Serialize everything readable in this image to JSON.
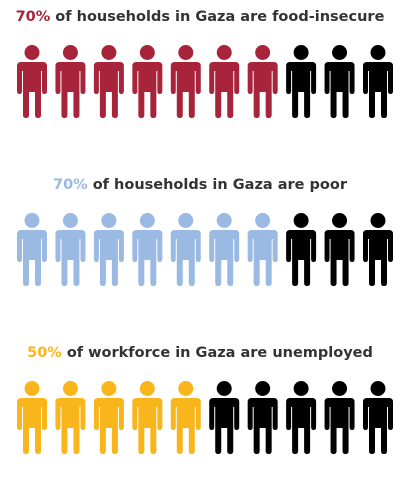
{
  "chart_data": [
    {
      "type": "pictograph",
      "title": "of households in Gaza are food-insecure",
      "values": [
        70
      ],
      "value_labels": [
        "70%"
      ],
      "color": "#a8243b",
      "rest_color": "#000000",
      "icons": 10,
      "xlim": [
        0,
        100
      ]
    },
    {
      "type": "pictograph",
      "title": "of households in Gaza are poor",
      "values": [
        70
      ],
      "value_labels": [
        "70%"
      ],
      "color": "#9ab9e3",
      "rest_color": "#000000",
      "icons": 10,
      "xlim": [
        0,
        100
      ]
    },
    {
      "type": "pictograph",
      "title": "of workforce in Gaza are unemployed",
      "values": [
        50
      ],
      "value_labels": [
        "50%"
      ],
      "color": "#f9b51c",
      "rest_color": "#000000",
      "icons": 10,
      "xlim": [
        0,
        100
      ]
    }
  ]
}
